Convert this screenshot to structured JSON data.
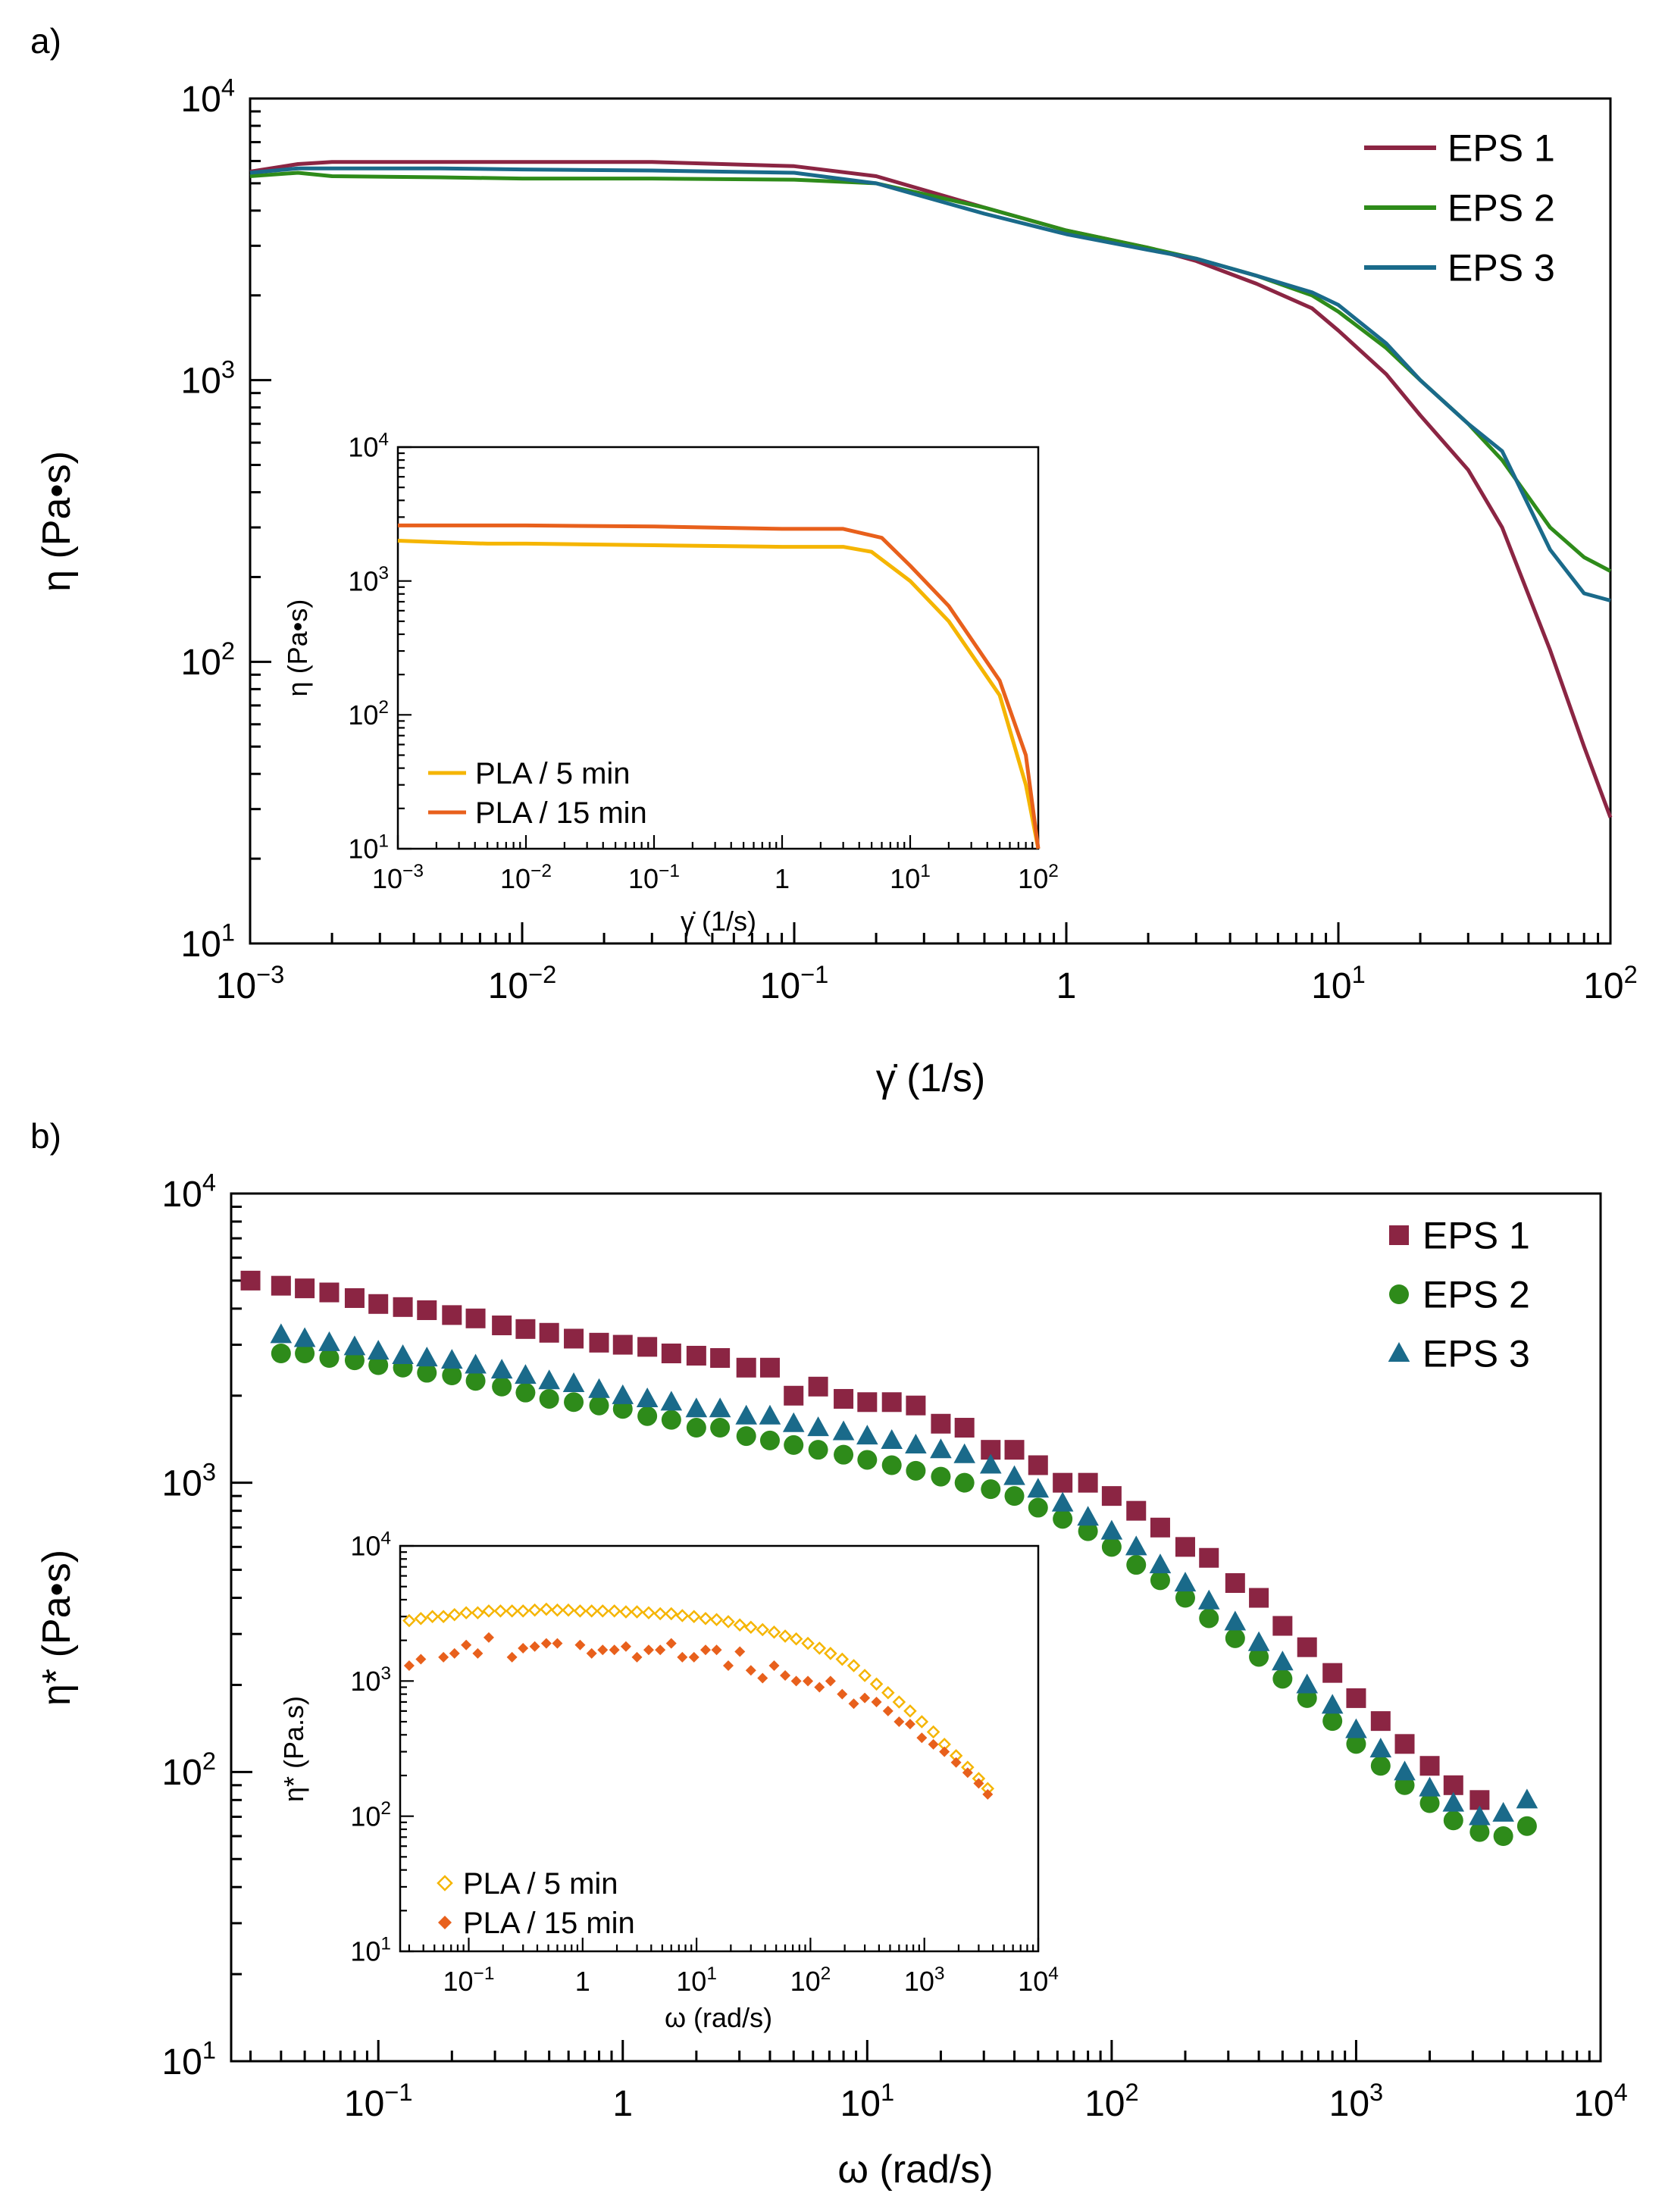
{
  "chart_data": [
    {
      "panel": "a)",
      "type": "line",
      "log_x": true,
      "log_y": true,
      "xlim": [
        0.001,
        100
      ],
      "ylim": [
        10,
        10000
      ],
      "xlabel": "γ̇ (1/s)",
      "ylabel": "η (Pa•s)",
      "x_ticks": [
        0.001,
        0.01,
        0.1,
        1,
        10,
        100
      ],
      "x_tick_labels": [
        {
          "base": "10",
          "exp": "−3"
        },
        {
          "base": "10",
          "exp": "−2"
        },
        {
          "base": "10",
          "exp": "−1"
        },
        {
          "base": "1",
          "exp": ""
        },
        {
          "base": "10",
          "exp": "1"
        },
        {
          "base": "10",
          "exp": "2"
        }
      ],
      "y_ticks": [
        10,
        100,
        1000,
        10000
      ],
      "y_tick_labels": [
        {
          "base": "10",
          "exp": "1"
        },
        {
          "base": "10",
          "exp": "2"
        },
        {
          "base": "10",
          "exp": "3"
        },
        {
          "base": "10",
          "exp": "4"
        }
      ],
      "legend_position": "top-right",
      "series": [
        {
          "name": "EPS 1",
          "color": "#8b2543",
          "x": [
            0.001,
            0.0015,
            0.002,
            0.005,
            0.01,
            0.03,
            0.1,
            0.2,
            0.5,
            1,
            2,
            3,
            5,
            8,
            10,
            15,
            20,
            30,
            40,
            60,
            80,
            100
          ],
          "y": [
            5500,
            5850,
            5950,
            5950,
            5950,
            5950,
            5750,
            5300,
            4100,
            3400,
            2950,
            2650,
            2200,
            1800,
            1500,
            1050,
            750,
            480,
            300,
            110,
            50,
            28
          ]
        },
        {
          "name": "EPS 2",
          "color": "#2e8b1a",
          "x": [
            0.001,
            0.0015,
            0.002,
            0.005,
            0.01,
            0.03,
            0.1,
            0.2,
            0.5,
            1,
            2,
            3,
            5,
            8,
            10,
            15,
            20,
            30,
            40,
            60,
            80,
            100
          ],
          "y": [
            5300,
            5450,
            5300,
            5250,
            5200,
            5200,
            5150,
            5000,
            4100,
            3400,
            2950,
            2700,
            2350,
            2000,
            1750,
            1300,
            1000,
            700,
            520,
            300,
            235,
            210
          ]
        },
        {
          "name": "EPS 3",
          "color": "#1a6a8a",
          "x": [
            0.001,
            0.0015,
            0.002,
            0.005,
            0.01,
            0.03,
            0.1,
            0.2,
            0.5,
            1,
            2,
            3,
            5,
            8,
            10,
            15,
            20,
            30,
            40,
            60,
            80,
            100
          ],
          "y": [
            5450,
            5650,
            5650,
            5650,
            5600,
            5550,
            5450,
            5000,
            3900,
            3300,
            2900,
            2700,
            2350,
            2050,
            1850,
            1350,
            1000,
            700,
            560,
            250,
            175,
            165
          ]
        }
      ],
      "inset": {
        "type": "line",
        "log_x": true,
        "log_y": true,
        "xlim": [
          0.001,
          100
        ],
        "ylim": [
          10,
          10000
        ],
        "xlabel": "γ̇ (1/s)",
        "ylabel": "η (Pa•s)",
        "x_ticks": [
          0.001,
          0.01,
          0.1,
          1,
          10,
          100
        ],
        "x_tick_labels": [
          {
            "base": "10",
            "exp": "−3"
          },
          {
            "base": "10",
            "exp": "−2"
          },
          {
            "base": "10",
            "exp": "−1"
          },
          {
            "base": "1",
            "exp": ""
          },
          {
            "base": "10",
            "exp": "1"
          },
          {
            "base": "10",
            "exp": "2"
          }
        ],
        "y_ticks": [
          10,
          100,
          1000,
          10000
        ],
        "y_tick_labels": [
          {
            "base": "10",
            "exp": "1"
          },
          {
            "base": "10",
            "exp": "2"
          },
          {
            "base": "10",
            "exp": "3"
          },
          {
            "base": "10",
            "exp": "4"
          }
        ],
        "legend_position": "bottom-left",
        "series": [
          {
            "name": "PLA / 5 min",
            "color": "#f5b500",
            "x": [
              0.001,
              0.002,
              0.005,
              0.01,
              0.1,
              1,
              3,
              5,
              10,
              20,
              50,
              80,
              100
            ],
            "y": [
              2000,
              1950,
              1900,
              1900,
              1850,
              1800,
              1800,
              1650,
              1000,
              500,
              140,
              30,
              10
            ]
          },
          {
            "name": "PLA / 15 min",
            "color": "#e8601c",
            "x": [
              0.001,
              0.002,
              0.005,
              0.01,
              0.1,
              1,
              3,
              6,
              10,
              20,
              50,
              80,
              100
            ],
            "y": [
              2600,
              2600,
              2600,
              2600,
              2550,
              2450,
              2450,
              2100,
              1300,
              650,
              180,
              50,
              10
            ]
          }
        ]
      }
    },
    {
      "panel": "b)",
      "type": "scatter",
      "log_x": true,
      "log_y": true,
      "xlim": [
        0.025,
        10000
      ],
      "ylim": [
        10,
        10000
      ],
      "xlabel": "ω (rad/s)",
      "ylabel": "η* (Pa•s)",
      "x_ticks": [
        0.1,
        1,
        10,
        100,
        1000,
        10000
      ],
      "x_tick_labels": [
        {
          "base": "10",
          "exp": "−1"
        },
        {
          "base": "1",
          "exp": ""
        },
        {
          "base": "10",
          "exp": "1"
        },
        {
          "base": "10",
          "exp": "2"
        },
        {
          "base": "10",
          "exp": "3"
        },
        {
          "base": "10",
          "exp": "4"
        }
      ],
      "y_ticks": [
        10,
        100,
        1000,
        10000
      ],
      "y_tick_labels": [
        {
          "base": "10",
          "exp": "1"
        },
        {
          "base": "10",
          "exp": "2"
        },
        {
          "base": "10",
          "exp": "3"
        },
        {
          "base": "10",
          "exp": "4"
        }
      ],
      "legend_position": "top-right",
      "series": [
        {
          "name": "EPS 1",
          "marker": "square",
          "color": "#8b2543",
          "x": [
            0.03,
            0.04,
            0.05,
            0.063,
            0.08,
            0.1,
            0.126,
            0.158,
            0.2,
            0.25,
            0.32,
            0.4,
            0.5,
            0.63,
            0.8,
            1,
            1.26,
            1.58,
            2,
            2.5,
            3.2,
            4,
            5,
            6.3,
            8,
            10,
            12.6,
            15.8,
            20,
            25,
            32,
            40,
            50,
            63,
            80,
            100,
            126,
            158,
            200,
            250,
            320,
            400,
            500,
            630,
            800,
            1000,
            1260,
            1580,
            2000,
            2500,
            3200
          ],
          "y": [
            5000,
            4800,
            4700,
            4550,
            4350,
            4150,
            4050,
            3950,
            3800,
            3700,
            3500,
            3400,
            3300,
            3150,
            3050,
            3000,
            2950,
            2800,
            2750,
            2700,
            2500,
            2500,
            2000,
            2150,
            1950,
            1900,
            1900,
            1850,
            1600,
            1550,
            1300,
            1300,
            1150,
            1000,
            1000,
            900,
            800,
            700,
            600,
            550,
            450,
            400,
            320,
            270,
            220,
            180,
            150,
            125,
            105,
            90,
            80
          ]
        },
        {
          "name": "EPS 2",
          "marker": "circle",
          "color": "#2e8b1a",
          "x": [
            0.04,
            0.05,
            0.063,
            0.08,
            0.1,
            0.126,
            0.158,
            0.2,
            0.25,
            0.32,
            0.4,
            0.5,
            0.63,
            0.8,
            1,
            1.26,
            1.58,
            2,
            2.5,
            3.2,
            4,
            5,
            6.3,
            8,
            10,
            12.6,
            15.8,
            20,
            25,
            32,
            40,
            50,
            63,
            80,
            100,
            126,
            158,
            200,
            250,
            320,
            400,
            500,
            630,
            800,
            1000,
            1260,
            1580,
            2000,
            2500,
            3200,
            4000,
            5000
          ],
          "y": [
            2800,
            2800,
            2700,
            2650,
            2550,
            2500,
            2400,
            2350,
            2250,
            2150,
            2050,
            1950,
            1900,
            1850,
            1800,
            1700,
            1650,
            1550,
            1550,
            1450,
            1400,
            1350,
            1300,
            1250,
            1200,
            1150,
            1100,
            1050,
            1000,
            950,
            900,
            820,
            750,
            680,
            600,
            520,
            460,
            400,
            340,
            290,
            250,
            210,
            180,
            150,
            125,
            105,
            90,
            78,
            68,
            62,
            60,
            65
          ]
        },
        {
          "name": "EPS 3",
          "marker": "triangle",
          "color": "#1a6a8a",
          "x": [
            0.04,
            0.05,
            0.063,
            0.08,
            0.1,
            0.126,
            0.158,
            0.2,
            0.25,
            0.32,
            0.4,
            0.5,
            0.63,
            0.8,
            1,
            1.26,
            1.58,
            2,
            2.5,
            3.2,
            4,
            5,
            6.3,
            8,
            10,
            12.6,
            15.8,
            20,
            25,
            32,
            40,
            50,
            63,
            80,
            100,
            126,
            158,
            200,
            250,
            320,
            400,
            500,
            630,
            800,
            1000,
            1260,
            1580,
            2000,
            2500,
            3200,
            4000,
            5000
          ],
          "y": [
            3250,
            3150,
            3050,
            2950,
            2850,
            2750,
            2700,
            2650,
            2550,
            2450,
            2350,
            2250,
            2200,
            2100,
            2000,
            1950,
            1900,
            1800,
            1800,
            1700,
            1700,
            1600,
            1550,
            1500,
            1450,
            1400,
            1350,
            1300,
            1250,
            1150,
            1050,
            950,
            850,
            760,
            680,
            600,
            520,
            450,
            390,
            330,
            280,
            240,
            200,
            170,
            140,
            120,
            100,
            88,
            78,
            70,
            72,
            80
          ]
        }
      ],
      "inset": {
        "type": "scatter",
        "log_x": true,
        "log_y": true,
        "xlim": [
          0.025,
          10000
        ],
        "ylim": [
          10,
          10000
        ],
        "xlabel": "ω (rad/s)",
        "ylabel": "η* (Pa.s)",
        "x_ticks": [
          0.1,
          1,
          10,
          100,
          1000,
          10000
        ],
        "x_tick_labels": [
          {
            "base": "10",
            "exp": "−1"
          },
          {
            "base": "1",
            "exp": ""
          },
          {
            "base": "10",
            "exp": "1"
          },
          {
            "base": "10",
            "exp": "2"
          },
          {
            "base": "10",
            "exp": "3"
          },
          {
            "base": "10",
            "exp": "4"
          }
        ],
        "y_ticks": [
          10,
          100,
          1000,
          10000
        ],
        "y_tick_labels": [
          {
            "base": "10",
            "exp": "1"
          },
          {
            "base": "10",
            "exp": "2"
          },
          {
            "base": "10",
            "exp": "3"
          },
          {
            "base": "10",
            "exp": "4"
          }
        ],
        "legend_position": "bottom-left",
        "series": [
          {
            "name": "PLA / 5 min",
            "marker": "diamond-open",
            "color": "#f5b500",
            "x": [
              0.03,
              0.038,
              0.048,
              0.06,
              0.075,
              0.095,
              0.12,
              0.15,
              0.19,
              0.24,
              0.3,
              0.38,
              0.48,
              0.6,
              0.75,
              0.95,
              1.2,
              1.5,
              1.9,
              2.4,
              3,
              3.8,
              4.8,
              6,
              7.5,
              9.5,
              12,
              15,
              19,
              24,
              30,
              38,
              48,
              60,
              75,
              95,
              120,
              150,
              190,
              240,
              300,
              380,
              480,
              600,
              750,
              950,
              1200,
              1500,
              1900,
              2400,
              3000,
              3600
            ],
            "y": [
              2800,
              2900,
              3000,
              3000,
              3100,
              3200,
              3200,
              3300,
              3300,
              3300,
              3300,
              3350,
              3400,
              3350,
              3350,
              3300,
              3300,
              3300,
              3300,
              3250,
              3250,
              3200,
              3150,
              3150,
              3050,
              3000,
              2900,
              2850,
              2750,
              2600,
              2500,
              2400,
              2300,
              2150,
              2050,
              1900,
              1750,
              1600,
              1450,
              1300,
              1100,
              950,
              820,
              700,
              600,
              500,
              420,
              340,
              280,
              230,
              190,
              160
            ]
          },
          {
            "name": "PLA / 15 min",
            "marker": "diamond",
            "color": "#e8601c",
            "x": [
              0.03,
              0.038,
              0.06,
              0.075,
              0.095,
              0.12,
              0.15,
              0.24,
              0.3,
              0.38,
              0.48,
              0.6,
              0.95,
              1.2,
              1.5,
              1.9,
              2.4,
              3,
              3.8,
              4.8,
              6,
              7.5,
              9.5,
              12,
              15,
              19,
              24,
              30,
              38,
              48,
              60,
              75,
              95,
              120,
              150,
              190,
              240,
              300,
              380,
              480,
              600,
              750,
              950,
              1200,
              1500,
              1900,
              2400,
              3000,
              3600
            ],
            "y": [
              1300,
              1450,
              1500,
              1600,
              1850,
              1600,
              2100,
              1500,
              1750,
              1800,
              1900,
              1900,
              1850,
              1600,
              1700,
              1700,
              1800,
              1500,
              1700,
              1700,
              1900,
              1500,
              1500,
              1700,
              1700,
              1300,
              1650,
              1200,
              1050,
              1300,
              1100,
              1000,
              1000,
              900,
              1000,
              800,
              680,
              750,
              700,
              600,
              500,
              480,
              380,
              340,
              300,
              250,
              210,
              175,
              145
            ]
          }
        ]
      }
    }
  ]
}
